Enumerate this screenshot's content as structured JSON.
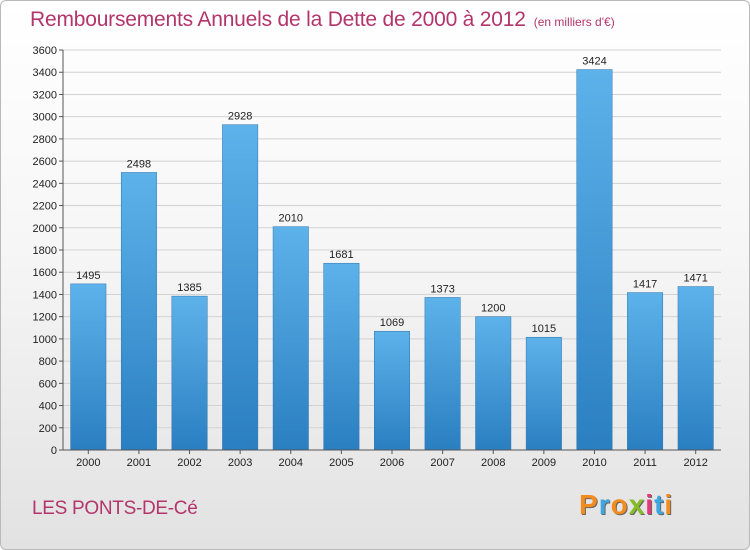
{
  "header": {
    "title": "Remboursements Annuels de la Dette de 2000 à 2012",
    "unit": "(en milliers d'€)"
  },
  "commune": "LES PONTS-DE-Cé",
  "logo": {
    "letters": [
      "P",
      "r",
      "o",
      "x",
      "i",
      "t",
      "i"
    ],
    "colors": [
      "#f28c1e",
      "#3ea7e2",
      "#f28c1e",
      "#86bc25",
      "#e8367a",
      "#3ea7e2",
      "#f28c1e"
    ]
  },
  "chart_data": {
    "type": "bar",
    "title": "Remboursements Annuels de la Dette de 2000 à 2012",
    "categories": [
      "2000",
      "2001",
      "2002",
      "2003",
      "2004",
      "2005",
      "2006",
      "2007",
      "2008",
      "2009",
      "2010",
      "2011",
      "2012"
    ],
    "values": [
      1495,
      2498,
      1385,
      2928,
      2010,
      1681,
      1069,
      1373,
      1200,
      1015,
      3424,
      1417,
      1471
    ],
    "ylim": [
      0,
      3600
    ],
    "yticks": [
      0,
      200,
      400,
      600,
      800,
      1000,
      1200,
      1400,
      1600,
      1800,
      2000,
      2200,
      2400,
      2600,
      2800,
      3000,
      3200,
      3400,
      3600
    ],
    "grid": true,
    "bar_color": "#3d8fd0",
    "legend": "none"
  }
}
